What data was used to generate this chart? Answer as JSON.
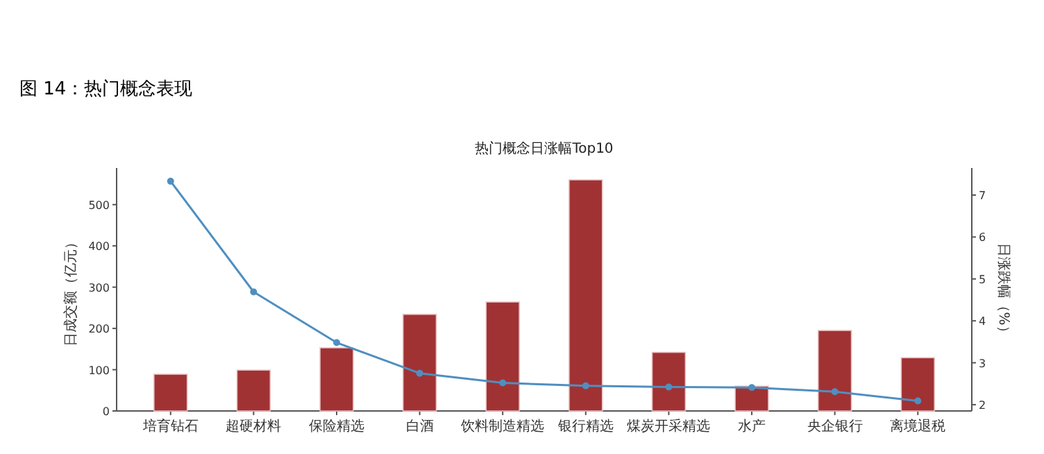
{
  "chart_data": {
    "type": "bar",
    "title": "热门概念日涨幅Top10",
    "annotations": [
      "图 14：热门概念表现"
    ],
    "ylabel": "日成交额（亿元）",
    "y2label": "日涨跌幅（%）",
    "categories": [
      "培育钻石",
      "超硬材料",
      "保险精选",
      "白酒",
      "饮料制造精选",
      "银行精选",
      "煤炭开采精选",
      "水产",
      "央企银行",
      "离境退税"
    ],
    "series": [
      {
        "color": "#a03234",
        "values": [
          89,
          99,
          153,
          234,
          264,
          560,
          142,
          60,
          195,
          129
        ]
      },
      {
        "type": "line",
        "axis": "y2",
        "color": "#4f8fc0",
        "marker": "circle",
        "values": [
          7.33,
          4.69,
          3.48,
          2.75,
          2.52,
          2.45,
          2.42,
          2.41,
          2.31,
          2.09
        ]
      }
    ],
    "ylim": [
      0,
      582
    ],
    "yticks": [
      0,
      100,
      200,
      300,
      400,
      500
    ],
    "y2lim": [
      1.85,
      7.58
    ],
    "y2ticks": [
      2,
      3,
      4,
      5,
      6,
      7
    ],
    "grid": false
  }
}
